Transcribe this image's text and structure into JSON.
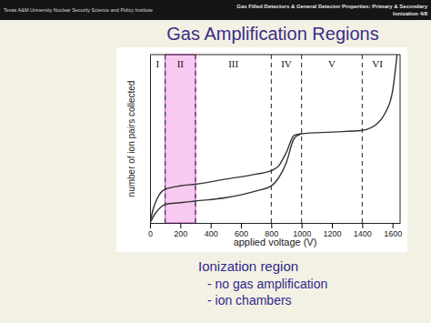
{
  "header": {
    "left": "Texas A&M University Nuclear Security Science and Policy Institute",
    "right": [
      "Gas Filled Detectors & General Detector Properties: Primary & Secondary",
      "Ionization 4/8"
    ]
  },
  "chart_data": {
    "type": "line",
    "title": "Gas Amplification Regions",
    "x_label": "applied voltage (V)",
    "y_label": "number of ion pairs collected",
    "xlim": [
      0,
      1650
    ],
    "xticks": [
      0,
      200,
      400,
      600,
      800,
      1000,
      1200,
      1400,
      1600
    ],
    "ylim": [
      0,
      100
    ],
    "tick_labels": "x",
    "grid": false,
    "boundaries": [
      100,
      300,
      800,
      1000,
      1400
    ],
    "highlight": [
      100,
      300
    ],
    "highlight_color": "#f6b8ee",
    "regions": [
      {
        "label": "I",
        "center": 50
      },
      {
        "label": "II",
        "center": 200
      },
      {
        "label": "III",
        "center": 550
      },
      {
        "label": "IV",
        "center": 900
      },
      {
        "label": "V",
        "center": 1200
      },
      {
        "label": "VI",
        "center": 1500
      }
    ],
    "series": [
      {
        "color": "#333333",
        "x": [
          0,
          20,
          50,
          100,
          200,
          300,
          500,
          700,
          800,
          850,
          900,
          950,
          1000,
          1200,
          1400,
          1500,
          1550,
          1600,
          1630
        ],
        "values": [
          0,
          8,
          15,
          20,
          22,
          23,
          26,
          29,
          31,
          34,
          42,
          52,
          53,
          54,
          55,
          59,
          65,
          78,
          100
        ]
      },
      {
        "color": "#333333",
        "x": [
          0,
          30,
          80,
          100,
          200,
          300,
          500,
          700,
          800,
          850,
          900,
          950,
          1000
        ],
        "values": [
          0,
          5,
          10,
          11,
          12,
          13,
          15,
          19,
          22,
          27,
          36,
          50,
          53
        ]
      }
    ]
  },
  "notes": {
    "heading": "Ionization region",
    "items": [
      "- no gas amplification",
      "- ion chambers"
    ]
  }
}
